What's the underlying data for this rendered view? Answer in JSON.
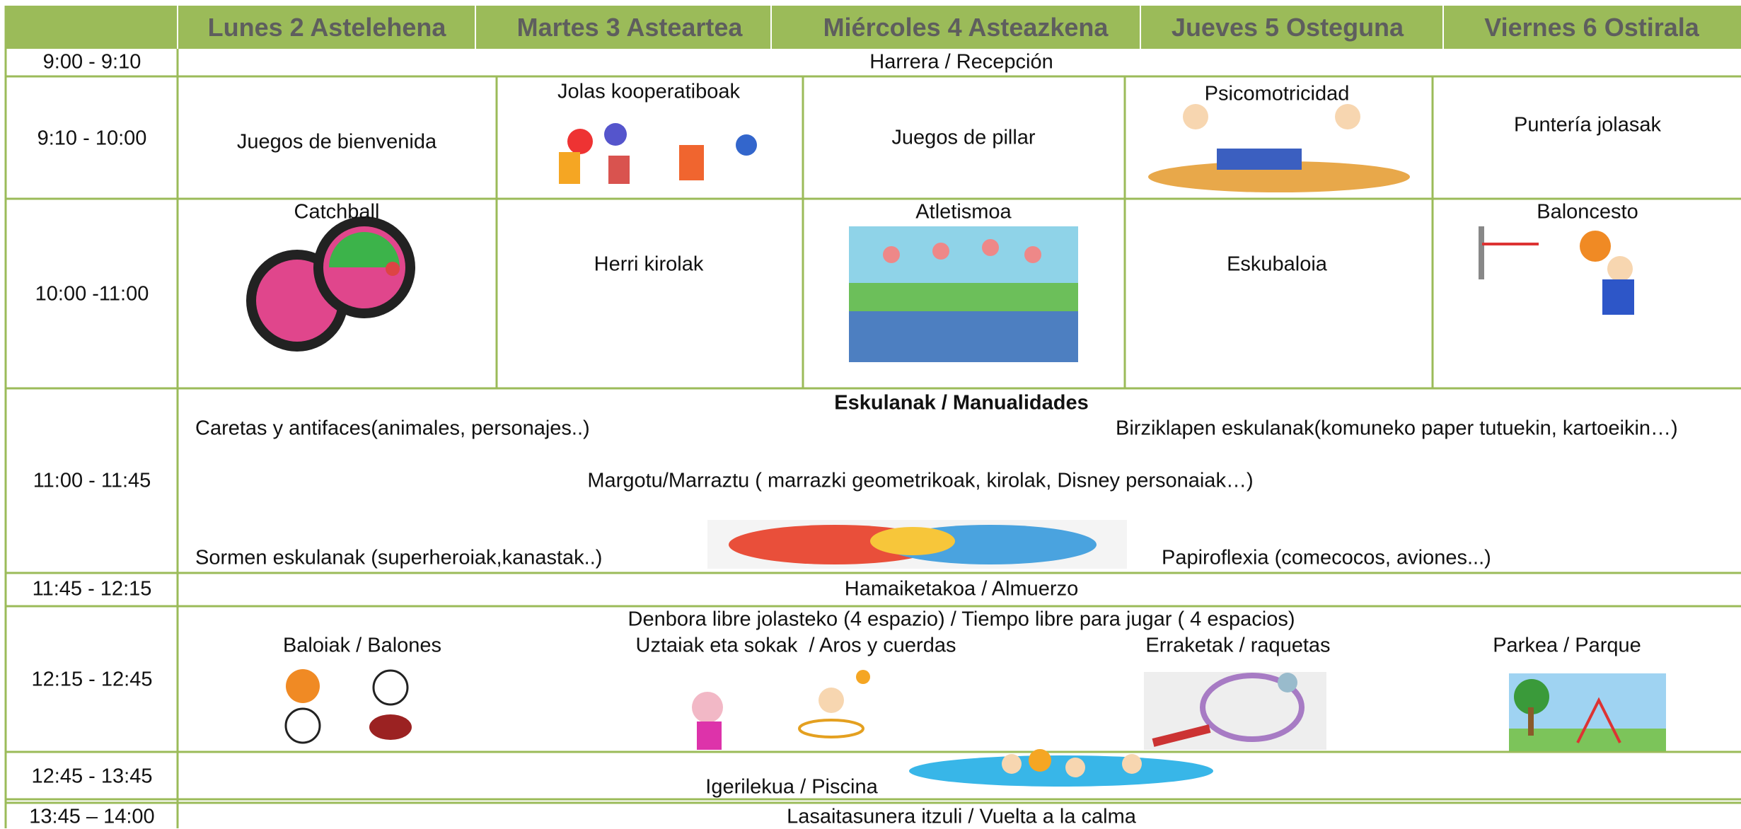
{
  "header": {
    "days": [
      "Lunes 2 Astelehena",
      "Martes 3 Asteartea",
      "Miércoles 4 Asteazkena",
      "Jueves 5 Osteguna",
      "Viernes 6 Ostirala"
    ]
  },
  "rows": [
    {
      "time": "9:00 - 9:10",
      "span": "Harrera / Recepción"
    },
    {
      "time": "9:10 - 10:00",
      "cells": [
        "Juegos de bienvenida",
        "Jolas kooperatiboak",
        "Juegos de pillar",
        "Psicomotricidad",
        "Puntería jolasak"
      ]
    },
    {
      "time": "10:00 -11:00",
      "cells": [
        "Catchball",
        "Herri kirolak",
        "Atletismoa",
        "Eskubaloia",
        "Baloncesto"
      ]
    },
    {
      "time": "11:00 - 11:45",
      "title": "Eskulanak / Manualidades",
      "items": [
        "Caretas y antifaces(animales, personajes..)",
        "Birziklapen eskulanak(komuneko paper tutuekin, kartoeikin…)",
        "Margotu/Marraztu ( marrazki geometrikoak, kirolak, Disney personaiak…)",
        "Sormen eskulanak (superheroiak,kanastak..)",
        "Papiroflexia (comecocos, aviones...)"
      ]
    },
    {
      "time": "11:45 - 12:15",
      "span": "Hamaiketakoa / Almuerzo"
    },
    {
      "time": "12:15 - 12:45",
      "title": "Denbora libre jolasteko (4 espazio) / Tiempo libre para jugar ( 4 espacios)",
      "items": [
        "Baloiak / Balones",
        "Uztaiak eta sokak  / Aros y cuerdas",
        "Erraketak / raquetas",
        "Parkea / Parque"
      ]
    },
    {
      "time": "12:45 - 13:45",
      "span": "Igerilekua / Piscina"
    },
    {
      "time": "13:45 – 14:00",
      "span": "Lasaitasunera itzuli / Vuelta a la calma"
    }
  ]
}
